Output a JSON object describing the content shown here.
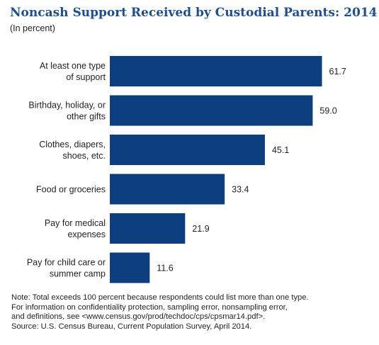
{
  "title": "Noncash Support Received by Custodial Parents: 2014",
  "subtitle": "(In percent)",
  "colors": {
    "bar": "#0d3f7e",
    "title": "#1f4e8c"
  },
  "chart_data": {
    "type": "bar",
    "orientation": "horizontal",
    "title": "Noncash Support Received by Custodial Parents: 2014",
    "subtitle": "(In percent)",
    "categories": [
      [
        "At least one type",
        "of support"
      ],
      [
        "Birthday, holiday, or",
        "other gifts"
      ],
      [
        "Clothes, diapers,",
        "shoes, etc."
      ],
      [
        "Food or groceries"
      ],
      [
        "Pay for medical",
        "expenses"
      ],
      [
        "Pay for child care or",
        "summer camp"
      ]
    ],
    "values": [
      61.7,
      59.0,
      45.1,
      33.4,
      21.9,
      11.6
    ],
    "value_labels": [
      "61.7",
      "59.0",
      "45.1",
      "33.4",
      "21.9",
      "11.6"
    ],
    "xlim": [
      0,
      100
    ],
    "grid": false,
    "legend": "none"
  },
  "notes": [
    "Note: Total exceeds 100 percent because respondents could list more than one type.",
    "For information on confidentiality protection, sampling error, nonsampling error,",
    "and definitions, see <www.census.gov/prod/techdoc/cps/cpsmar14.pdf>.",
    "Source: U.S. Census Bureau, Current Population Survey, April 2014."
  ]
}
